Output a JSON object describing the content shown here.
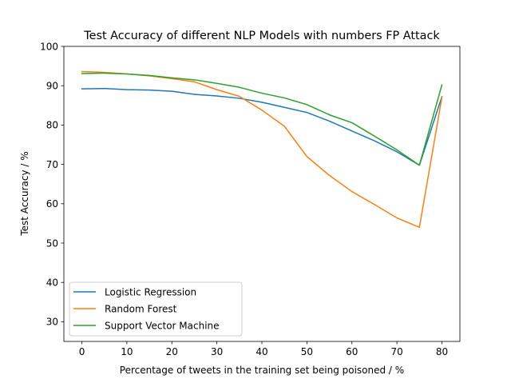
{
  "chart_data": {
    "type": "line",
    "title": "Test Accuracy of different NLP Models with numbers FP Attack",
    "xlabel": "Percentage of tweets in the training set being poisoned / %",
    "ylabel": "Test Accuracy / %",
    "xlim": [
      -4,
      84
    ],
    "ylim": [
      25,
      100
    ],
    "xticks": [
      0,
      10,
      20,
      30,
      40,
      50,
      60,
      70,
      80
    ],
    "yticks": [
      30,
      40,
      50,
      60,
      70,
      80,
      90,
      100
    ],
    "grid": false,
    "legend_position": "lower-left",
    "x": [
      0,
      5,
      10,
      15,
      20,
      25,
      30,
      35,
      40,
      45,
      50,
      55,
      60,
      65,
      70,
      75,
      80
    ],
    "series": [
      {
        "name": "Logistic Regression",
        "color": "#1f77b4",
        "values": [
          89.2,
          89.3,
          89.0,
          88.9,
          88.6,
          87.8,
          87.4,
          86.8,
          85.8,
          84.5,
          83.2,
          81.0,
          78.5,
          76.0,
          73.2,
          69.8,
          87.2
        ]
      },
      {
        "name": "Random Forest",
        "color": "#ff7f0e",
        "values": [
          93.6,
          93.4,
          93.0,
          92.5,
          91.8,
          91.0,
          89.0,
          87.3,
          83.8,
          79.7,
          72.0,
          67.2,
          63.1,
          59.8,
          56.4,
          54.0,
          87.0
        ]
      },
      {
        "name": "Support Vector Machine",
        "color": "#2ca02c",
        "values": [
          93.1,
          93.2,
          93.0,
          92.6,
          92.0,
          91.5,
          90.6,
          89.6,
          88.1,
          86.9,
          85.2,
          82.6,
          80.6,
          77.2,
          73.7,
          69.8,
          90.2
        ]
      }
    ]
  }
}
